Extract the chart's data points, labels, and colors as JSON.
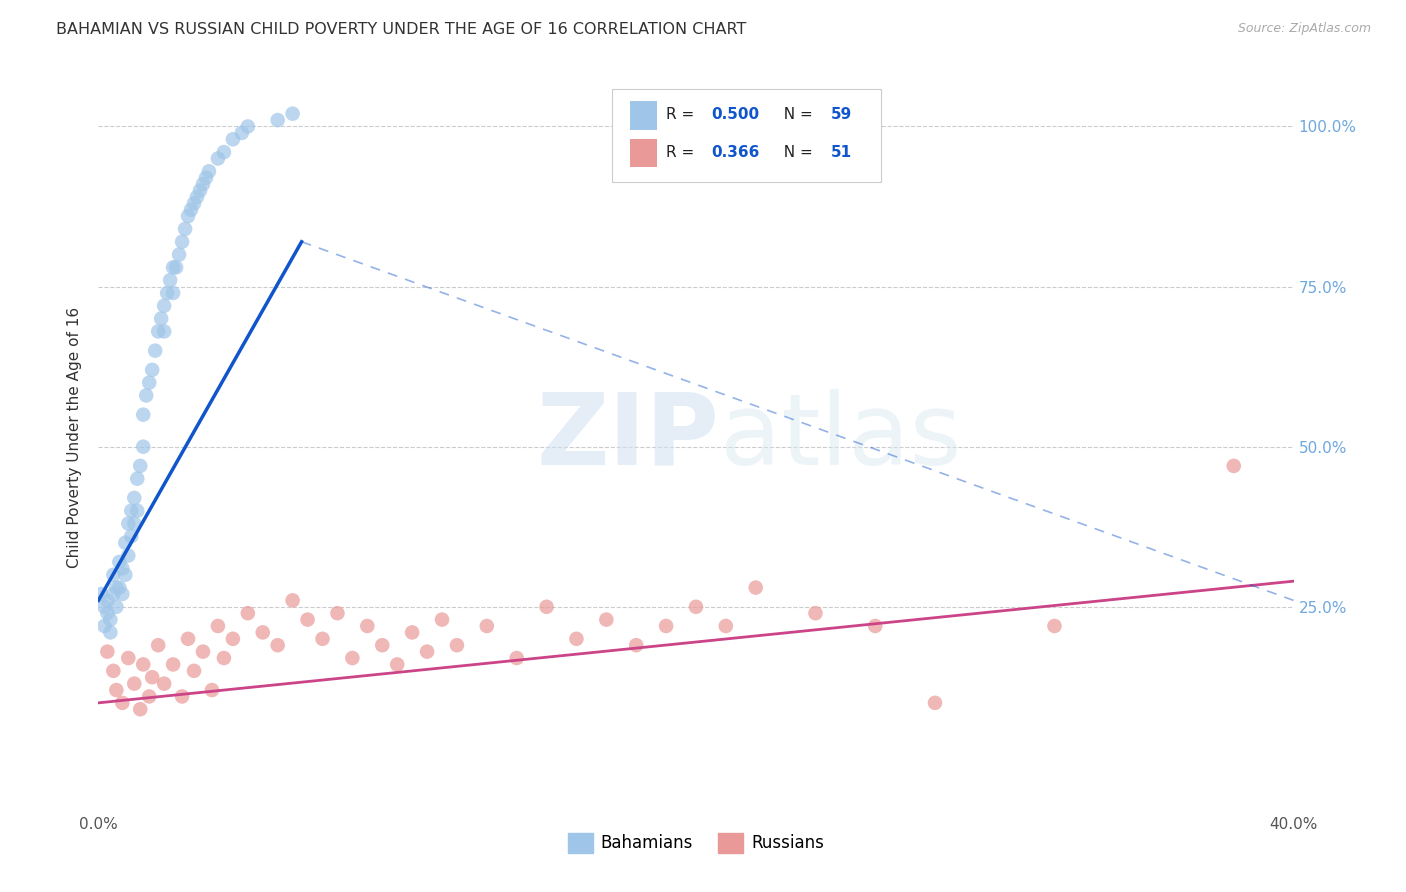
{
  "title": "BAHAMIAN VS RUSSIAN CHILD POVERTY UNDER THE AGE OF 16 CORRELATION CHART",
  "source": "Source: ZipAtlas.com",
  "ylabel": "Child Poverty Under the Age of 16",
  "ytick_values": [
    1.0,
    0.75,
    0.5,
    0.25
  ],
  "xlim": [
    0.0,
    0.4
  ],
  "ylim": [
    -0.07,
    1.1
  ],
  "bahamian_color": "#9fc5e8",
  "russian_color": "#ea9999",
  "trend_blue": "#1155cc",
  "trend_pink": "#cc4488",
  "legend_R_blue": "0.500",
  "legend_N_blue": "59",
  "legend_R_pink": "0.366",
  "legend_N_pink": "51",
  "watermark_zip": "ZIP",
  "watermark_atlas": "atlas",
  "bahamian_x": [
    0.001,
    0.002,
    0.002,
    0.003,
    0.003,
    0.004,
    0.004,
    0.005,
    0.005,
    0.006,
    0.006,
    0.007,
    0.007,
    0.008,
    0.008,
    0.009,
    0.009,
    0.01,
    0.01,
    0.011,
    0.011,
    0.012,
    0.012,
    0.013,
    0.013,
    0.014,
    0.015,
    0.015,
    0.016,
    0.017,
    0.018,
    0.019,
    0.02,
    0.021,
    0.022,
    0.022,
    0.023,
    0.024,
    0.025,
    0.025,
    0.026,
    0.027,
    0.028,
    0.029,
    0.03,
    0.031,
    0.032,
    0.033,
    0.034,
    0.035,
    0.036,
    0.037,
    0.04,
    0.042,
    0.045,
    0.048,
    0.05,
    0.06,
    0.065
  ],
  "bahamian_y": [
    0.27,
    0.25,
    0.22,
    0.26,
    0.24,
    0.23,
    0.21,
    0.3,
    0.27,
    0.28,
    0.25,
    0.32,
    0.28,
    0.31,
    0.27,
    0.35,
    0.3,
    0.38,
    0.33,
    0.4,
    0.36,
    0.42,
    0.38,
    0.45,
    0.4,
    0.47,
    0.55,
    0.5,
    0.58,
    0.6,
    0.62,
    0.65,
    0.68,
    0.7,
    0.72,
    0.68,
    0.74,
    0.76,
    0.78,
    0.74,
    0.78,
    0.8,
    0.82,
    0.84,
    0.86,
    0.87,
    0.88,
    0.89,
    0.9,
    0.91,
    0.92,
    0.93,
    0.95,
    0.96,
    0.98,
    0.99,
    1.0,
    1.01,
    1.02
  ],
  "russian_x": [
    0.003,
    0.005,
    0.006,
    0.008,
    0.01,
    0.012,
    0.014,
    0.015,
    0.017,
    0.018,
    0.02,
    0.022,
    0.025,
    0.028,
    0.03,
    0.032,
    0.035,
    0.038,
    0.04,
    0.042,
    0.045,
    0.05,
    0.055,
    0.06,
    0.065,
    0.07,
    0.075,
    0.08,
    0.085,
    0.09,
    0.095,
    0.1,
    0.105,
    0.11,
    0.115,
    0.12,
    0.13,
    0.14,
    0.15,
    0.16,
    0.17,
    0.18,
    0.19,
    0.2,
    0.21,
    0.22,
    0.24,
    0.26,
    0.28,
    0.32,
    0.38
  ],
  "russian_y": [
    0.18,
    0.15,
    0.12,
    0.1,
    0.17,
    0.13,
    0.09,
    0.16,
    0.11,
    0.14,
    0.19,
    0.13,
    0.16,
    0.11,
    0.2,
    0.15,
    0.18,
    0.12,
    0.22,
    0.17,
    0.2,
    0.24,
    0.21,
    0.19,
    0.26,
    0.23,
    0.2,
    0.24,
    0.17,
    0.22,
    0.19,
    0.16,
    0.21,
    0.18,
    0.23,
    0.19,
    0.22,
    0.17,
    0.25,
    0.2,
    0.23,
    0.19,
    0.22,
    0.25,
    0.22,
    0.28,
    0.24,
    0.22,
    0.1,
    0.22,
    0.47
  ],
  "trend_blue_x0": 0.0,
  "trend_blue_y0": 0.26,
  "trend_blue_x1": 0.068,
  "trend_blue_y1": 0.82,
  "trend_blue_dash_x0": 0.068,
  "trend_blue_dash_y0": 0.82,
  "trend_blue_dash_x1": 0.4,
  "trend_blue_dash_y1": 0.26,
  "trend_pink_x0": 0.0,
  "trend_pink_y0": 0.1,
  "trend_pink_x1": 0.4,
  "trend_pink_y1": 0.29
}
